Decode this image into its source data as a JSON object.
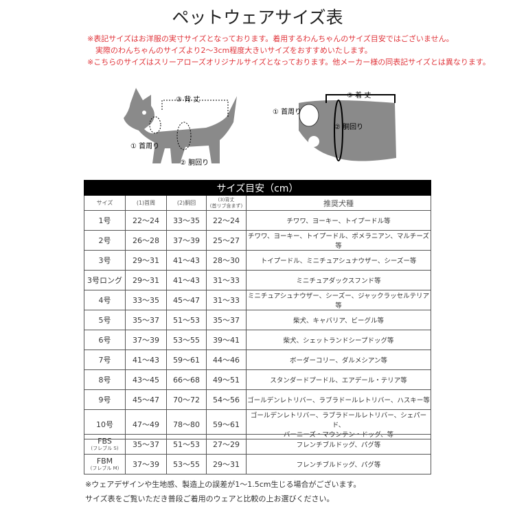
{
  "title": "ペットウェアサイズ表",
  "notes": [
    "※表記サイズはお洋服の実寸サイズとなっております。着用するわんちゃんのサイズ目安ではございません。",
    "実際のわんちゃんのサイズより2～3cm程度大きいサイズをおすすめいたします。",
    "※こちらのサイズはスリーアローズオリジナルサイズとなっております。他メーカー様の同表記サイズとは異なります。"
  ],
  "diagram": {
    "dog": {
      "neck": "① 首周り",
      "chest": "② 胴回り",
      "back": "③ 背 丈"
    },
    "wear": {
      "neck": "① 首周り",
      "chest": "② 胴回り",
      "back": "③ 着 丈"
    }
  },
  "table": {
    "caption": "サイズ目安（cm）",
    "headers": [
      "サイズ",
      "(1)首周",
      "(2)胴回",
      "(3)背丈",
      "(首リブ含まず)",
      "推奨犬種"
    ],
    "rows": [
      {
        "size": "1号",
        "neck": "22～24",
        "chest": "33～35",
        "back": "22～24",
        "breeds": "チワワ、ヨーキー、トイプードル等"
      },
      {
        "size": "2号",
        "neck": "26～28",
        "chest": "37～39",
        "back": "25～27",
        "breeds": "チワワ、ヨーキー、トイプードル、ポメラニアン、マルチーズ等"
      },
      {
        "size": "3号",
        "neck": "29～31",
        "chest": "41～43",
        "back": "28～30",
        "breeds": "トイプードル、ミニチュアシュナウザー、シーズー等"
      },
      {
        "size": "3号ロング",
        "neck": "29～31",
        "chest": "41～43",
        "back": "31～33",
        "breeds": "ミニチュアダックスフンド等"
      },
      {
        "size": "4号",
        "neck": "33～35",
        "chest": "45～47",
        "back": "31～33",
        "breeds": "ミニチュアシュナウザー、シーズー、ジャックラッセルテリア等"
      },
      {
        "size": "5号",
        "neck": "35～37",
        "chest": "51～53",
        "back": "35～37",
        "breeds": "柴犬、キャバリア、ビーグル等"
      },
      {
        "size": "6号",
        "neck": "37～39",
        "chest": "53～55",
        "back": "39～41",
        "breeds": "柴犬、シェットランドシープドッグ等"
      },
      {
        "size": "7号",
        "neck": "41～43",
        "chest": "59～61",
        "back": "44～46",
        "breeds": "ボーダーコリー、ダルメシアン等"
      },
      {
        "size": "8号",
        "neck": "43～45",
        "chest": "66～68",
        "back": "49～51",
        "breeds": "スタンダードプードル、エアデール・テリア等"
      },
      {
        "size": "9号",
        "neck": "45～47",
        "chest": "70～72",
        "back": "54～56",
        "breeds": "ゴールデンレトリバー、ラブラドールレトリバー、ハスキー等"
      },
      {
        "size": "10号",
        "neck": "47～49",
        "chest": "78～80",
        "back": "59～61",
        "breeds": "ゴールデンレトリバー、ラブラドールレトリバー、シェパード、",
        "breeds2": "バーニーズ・マウンテン・ドッグ、等"
      }
    ],
    "fb_rows": [
      {
        "size": "FBS",
        "sub": "(フレブル S)",
        "neck": "35～37",
        "chest": "51～53",
        "back": "27～29",
        "breeds": "フレンチブルドッグ、パグ等"
      },
      {
        "size": "FBM",
        "sub": "(フレブル M)",
        "neck": "37～39",
        "chest": "53～55",
        "back": "29～31",
        "breeds": "フレンチブルドッグ、パグ等"
      }
    ]
  },
  "footer": [
    "※ウェアデザインや生地感、製造上の誤差が1～1.5cm生じる場合がございます。",
    "サイズ表をご覧いただき普段ご着用のウェアと比較の上お選びください。"
  ],
  "colors": {
    "note": "#e0343a",
    "silhouette": "#8a8a8a",
    "caption_bg": "#000000"
  }
}
